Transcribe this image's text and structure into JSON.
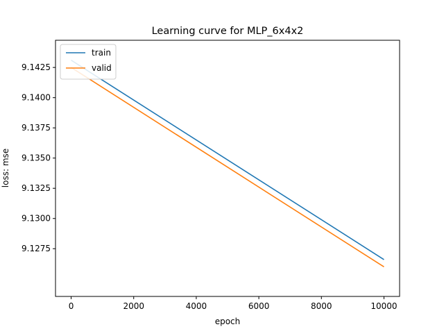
{
  "chart_data": {
    "type": "line",
    "title": "Learning curve for MLP_6x4x2",
    "xlabel": "epoch",
    "ylabel": "loss: mse",
    "xlim": [
      -500,
      10500
    ],
    "ylim": [
      9.12355,
      9.14475
    ],
    "xticks": [
      0,
      2000,
      4000,
      6000,
      8000,
      10000
    ],
    "xtick_labels": [
      "0",
      "2000",
      "4000",
      "6000",
      "8000",
      "10000"
    ],
    "yticks": [
      9.1275,
      9.13,
      9.1325,
      9.135,
      9.1375,
      9.14,
      9.1425
    ],
    "ytick_labels": [
      "9.1275",
      "9.1300",
      "9.1325",
      "9.1350",
      "9.1375",
      "9.1400",
      "9.1425"
    ],
    "grid": false,
    "legend_position": "upper-left",
    "series": [
      {
        "name": "train",
        "color": "#1f77b4",
        "x": [
          0,
          10000
        ],
        "y": [
          9.1431,
          9.1266
        ]
      },
      {
        "name": "valid",
        "color": "#ff7f0e",
        "x": [
          0,
          10000
        ],
        "y": [
          9.1425,
          9.126
        ]
      }
    ]
  }
}
